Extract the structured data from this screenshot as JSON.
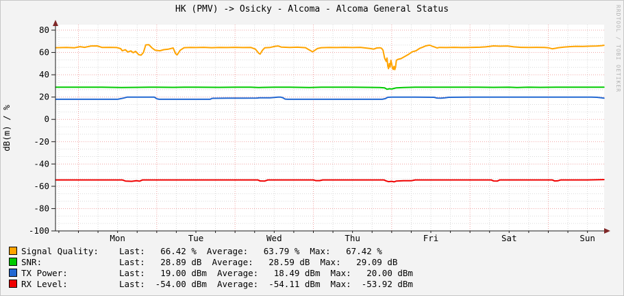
{
  "title": "HK (PMV) -> Osicky - Alcoma - Alcoma General Status",
  "watermark": "RRDTOOL / TOBI OETIKER",
  "colors": {
    "signal_quality": "#ffa400",
    "snr": "#00cb00",
    "tx_power": "#2268d2",
    "rx_level": "#f00000",
    "grid_major": "#f0a3a3",
    "grid_minor": "#d9d9d9",
    "axis": "#1a1a1a",
    "arrow": "#7f2727",
    "background": "#f3f3f3",
    "plot_background": "#ffffff"
  },
  "chart_data": {
    "type": "line",
    "title": "HK (PMV) -> Osicky - Alcoma - Alcoma General Status",
    "xlabel": "",
    "ylabel": "dB(m) / %",
    "ylim": [
      -100,
      85
    ],
    "y_major_ticks": [
      80,
      60,
      40,
      20,
      0,
      -20,
      -40,
      -60,
      -80,
      -100
    ],
    "y_minor_step": 6.6667,
    "xlim_days": [
      -0.293,
      6.713
    ],
    "x_major_gridlines_days": [
      0,
      1,
      2,
      3,
      4,
      5,
      6
    ],
    "x_minor_step_days": 0.25,
    "x_tick_labels": [
      {
        "t": 0.5,
        "label": "Mon"
      },
      {
        "t": 1.5,
        "label": "Tue"
      },
      {
        "t": 2.5,
        "label": "Wed"
      },
      {
        "t": 3.5,
        "label": "Thu"
      },
      {
        "t": 4.5,
        "label": "Fri"
      },
      {
        "t": 5.5,
        "label": "Sat"
      },
      {
        "t": 6.5,
        "label": "Sun"
      }
    ],
    "grid": true,
    "legend_position": "bottom",
    "series": [
      {
        "name": "Signal Quality",
        "unit": "%",
        "color": "#ffa400",
        "last": 66.42,
        "average": 63.79,
        "max": 67.42,
        "points": [
          [
            -0.29,
            64.3
          ],
          [
            -0.15,
            64.5
          ],
          [
            -0.05,
            64.2
          ],
          [
            0.02,
            65.2
          ],
          [
            0.08,
            64.6
          ],
          [
            0.16,
            65.8
          ],
          [
            0.24,
            65.9
          ],
          [
            0.3,
            64.5
          ],
          [
            0.4,
            64.6
          ],
          [
            0.49,
            64.4
          ],
          [
            0.54,
            63.4
          ],
          [
            0.56,
            61.5
          ],
          [
            0.6,
            62.4
          ],
          [
            0.63,
            60.4
          ],
          [
            0.67,
            61.4
          ],
          [
            0.7,
            59.8
          ],
          [
            0.73,
            61.0
          ],
          [
            0.77,
            58.0
          ],
          [
            0.8,
            57.6
          ],
          [
            0.83,
            60.0
          ],
          [
            0.86,
            66.8
          ],
          [
            0.9,
            66.9
          ],
          [
            0.94,
            64.0
          ],
          [
            0.98,
            62.0
          ],
          [
            1.04,
            61.5
          ],
          [
            1.09,
            62.5
          ],
          [
            1.15,
            63.0
          ],
          [
            1.21,
            64.0
          ],
          [
            1.24,
            59.0
          ],
          [
            1.26,
            57.8
          ],
          [
            1.3,
            62.0
          ],
          [
            1.35,
            64.3
          ],
          [
            1.43,
            64.5
          ],
          [
            1.5,
            64.4
          ],
          [
            1.6,
            64.6
          ],
          [
            1.7,
            64.3
          ],
          [
            1.8,
            64.5
          ],
          [
            1.9,
            64.4
          ],
          [
            2.0,
            64.6
          ],
          [
            2.1,
            64.4
          ],
          [
            2.2,
            64.5
          ],
          [
            2.26,
            63.0
          ],
          [
            2.3,
            59.5
          ],
          [
            2.32,
            58.5
          ],
          [
            2.35,
            62.0
          ],
          [
            2.38,
            64.2
          ],
          [
            2.45,
            64.5
          ],
          [
            2.51,
            65.5
          ],
          [
            2.55,
            65.8
          ],
          [
            2.59,
            64.8
          ],
          [
            2.7,
            64.5
          ],
          [
            2.8,
            64.7
          ],
          [
            2.9,
            64.3
          ],
          [
            2.93,
            63.0
          ],
          [
            2.97,
            61.4
          ],
          [
            2.99,
            60.5
          ],
          [
            3.02,
            62.0
          ],
          [
            3.05,
            63.5
          ],
          [
            3.1,
            64.3
          ],
          [
            3.2,
            64.5
          ],
          [
            3.3,
            64.4
          ],
          [
            3.4,
            64.6
          ],
          [
            3.5,
            64.4
          ],
          [
            3.6,
            64.6
          ],
          [
            3.73,
            63.5
          ],
          [
            3.77,
            63.0
          ],
          [
            3.81,
            64.0
          ],
          [
            3.85,
            64.2
          ],
          [
            3.87,
            63.8
          ],
          [
            3.89,
            62.0
          ],
          [
            3.91,
            55.0
          ],
          [
            3.93,
            52.0
          ],
          [
            3.94,
            55.0
          ],
          [
            3.95,
            48.0
          ],
          [
            3.96,
            45.5
          ],
          [
            3.97,
            50.0
          ],
          [
            3.98,
            47.0
          ],
          [
            3.99,
            53.0
          ],
          [
            4.0,
            50.0
          ],
          [
            4.01,
            46.0
          ],
          [
            4.02,
            44.8
          ],
          [
            4.03,
            47.5
          ],
          [
            4.04,
            44.6
          ],
          [
            4.05,
            47.0
          ],
          [
            4.06,
            53.0
          ],
          [
            4.08,
            53.8
          ],
          [
            4.12,
            54.5
          ],
          [
            4.17,
            56.5
          ],
          [
            4.22,
            58.5
          ],
          [
            4.26,
            60.5
          ],
          [
            4.31,
            61.5
          ],
          [
            4.36,
            63.8
          ],
          [
            4.4,
            64.8
          ],
          [
            4.43,
            65.8
          ],
          [
            4.47,
            66.4
          ],
          [
            4.49,
            66.5
          ],
          [
            4.52,
            65.5
          ],
          [
            4.55,
            64.8
          ],
          [
            4.58,
            64.0
          ],
          [
            4.61,
            64.5
          ],
          [
            4.7,
            64.4
          ],
          [
            4.8,
            64.6
          ],
          [
            4.9,
            64.4
          ],
          [
            5.0,
            64.5
          ],
          [
            5.13,
            64.7
          ],
          [
            5.2,
            65.0
          ],
          [
            5.3,
            65.9
          ],
          [
            5.38,
            65.6
          ],
          [
            5.48,
            65.8
          ],
          [
            5.56,
            65.0
          ],
          [
            5.65,
            64.6
          ],
          [
            5.75,
            64.5
          ],
          [
            5.85,
            64.6
          ],
          [
            5.95,
            64.5
          ],
          [
            6.0,
            64.2
          ],
          [
            6.05,
            63.3
          ],
          [
            6.09,
            63.7
          ],
          [
            6.13,
            64.3
          ],
          [
            6.2,
            64.8
          ],
          [
            6.27,
            65.2
          ],
          [
            6.35,
            65.5
          ],
          [
            6.44,
            65.4
          ],
          [
            6.53,
            65.6
          ],
          [
            6.62,
            65.8
          ],
          [
            6.68,
            66.1
          ],
          [
            6.71,
            66.4
          ]
        ]
      },
      {
        "name": "SNR",
        "unit": "dB",
        "color": "#00cb00",
        "last": 28.89,
        "average": 28.59,
        "max": 29.09,
        "points": [
          [
            -0.29,
            28.9
          ],
          [
            0.3,
            28.9
          ],
          [
            0.55,
            28.6
          ],
          [
            0.75,
            28.7
          ],
          [
            0.9,
            28.8
          ],
          [
            1.0,
            28.9
          ],
          [
            1.2,
            28.7
          ],
          [
            1.35,
            28.9
          ],
          [
            1.5,
            28.8
          ],
          [
            1.8,
            28.7
          ],
          [
            2.0,
            28.9
          ],
          [
            2.2,
            28.8
          ],
          [
            2.3,
            28.6
          ],
          [
            2.5,
            28.9
          ],
          [
            2.7,
            28.8
          ],
          [
            2.95,
            28.5
          ],
          [
            3.1,
            28.8
          ],
          [
            3.3,
            28.9
          ],
          [
            3.5,
            28.8
          ],
          [
            3.7,
            28.7
          ],
          [
            3.85,
            28.6
          ],
          [
            3.91,
            28.2
          ],
          [
            3.94,
            27.0
          ],
          [
            3.97,
            27.5
          ],
          [
            4.0,
            27.2
          ],
          [
            4.03,
            27.8
          ],
          [
            4.06,
            28.3
          ],
          [
            4.15,
            28.6
          ],
          [
            4.3,
            28.9
          ],
          [
            4.5,
            28.8
          ],
          [
            4.7,
            28.9
          ],
          [
            4.9,
            28.8
          ],
          [
            5.1,
            28.9
          ],
          [
            5.3,
            28.7
          ],
          [
            5.5,
            28.8
          ],
          [
            5.6,
            28.6
          ],
          [
            5.75,
            28.8
          ],
          [
            5.9,
            28.7
          ],
          [
            6.1,
            28.9
          ],
          [
            6.3,
            28.8
          ],
          [
            6.5,
            28.9
          ],
          [
            6.71,
            28.9
          ]
        ]
      },
      {
        "name": "TX Power",
        "unit": "dBm",
        "color": "#2268d2",
        "last": 19.0,
        "average": 18.49,
        "max": 20.0,
        "points": [
          [
            -0.29,
            18.0
          ],
          [
            0.5,
            18.0
          ],
          [
            0.57,
            19.0
          ],
          [
            0.62,
            19.9
          ],
          [
            0.7,
            20.0
          ],
          [
            0.88,
            20.0
          ],
          [
            0.97,
            19.9
          ],
          [
            1.0,
            18.5
          ],
          [
            1.03,
            18.0
          ],
          [
            1.4,
            18.0
          ],
          [
            1.68,
            18.0
          ],
          [
            1.71,
            18.9
          ],
          [
            1.9,
            19.0
          ],
          [
            2.1,
            19.0
          ],
          [
            2.28,
            19.1
          ],
          [
            2.31,
            19.3
          ],
          [
            2.45,
            19.3
          ],
          [
            2.55,
            19.9
          ],
          [
            2.58,
            20.0
          ],
          [
            2.61,
            19.4
          ],
          [
            2.64,
            18.2
          ],
          [
            2.67,
            18.0
          ],
          [
            3.0,
            18.0
          ],
          [
            3.5,
            18.0
          ],
          [
            3.88,
            18.0
          ],
          [
            3.92,
            18.6
          ],
          [
            3.95,
            19.8
          ],
          [
            4.0,
            19.9
          ],
          [
            4.3,
            19.9
          ],
          [
            4.54,
            19.8
          ],
          [
            4.58,
            19.1
          ],
          [
            4.63,
            19.0
          ],
          [
            4.68,
            19.3
          ],
          [
            4.73,
            19.8
          ],
          [
            5.0,
            19.9
          ],
          [
            5.5,
            19.9
          ],
          [
            6.0,
            19.9
          ],
          [
            6.3,
            19.9
          ],
          [
            6.55,
            19.9
          ],
          [
            6.62,
            19.8
          ],
          [
            6.68,
            19.3
          ],
          [
            6.71,
            19.0
          ]
        ]
      },
      {
        "name": "RX Level",
        "unit": "dBm",
        "color": "#f00000",
        "last": -54.0,
        "average": -54.11,
        "max": -53.92,
        "points": [
          [
            -0.29,
            -54.3
          ],
          [
            0.4,
            -54.3
          ],
          [
            0.56,
            -54.3
          ],
          [
            0.6,
            -55.3
          ],
          [
            0.68,
            -55.5
          ],
          [
            0.74,
            -55.0
          ],
          [
            0.78,
            -55.4
          ],
          [
            0.82,
            -54.3
          ],
          [
            1.2,
            -54.3
          ],
          [
            1.5,
            -54.3
          ],
          [
            2.0,
            -54.3
          ],
          [
            2.29,
            -54.3
          ],
          [
            2.32,
            -55.2
          ],
          [
            2.38,
            -55.3
          ],
          [
            2.42,
            -54.3
          ],
          [
            3.0,
            -54.3
          ],
          [
            3.03,
            -54.9
          ],
          [
            3.08,
            -54.9
          ],
          [
            3.12,
            -54.3
          ],
          [
            3.5,
            -54.3
          ],
          [
            3.9,
            -54.3
          ],
          [
            3.93,
            -55.2
          ],
          [
            3.96,
            -55.8
          ],
          [
            4.0,
            -55.5
          ],
          [
            4.03,
            -56.0
          ],
          [
            4.06,
            -55.3
          ],
          [
            4.15,
            -55.0
          ],
          [
            4.25,
            -55.0
          ],
          [
            4.3,
            -54.3
          ],
          [
            5.0,
            -54.3
          ],
          [
            5.27,
            -54.3
          ],
          [
            5.3,
            -55.2
          ],
          [
            5.35,
            -55.3
          ],
          [
            5.38,
            -54.3
          ],
          [
            5.8,
            -54.3
          ],
          [
            6.05,
            -54.3
          ],
          [
            6.08,
            -55.2
          ],
          [
            6.12,
            -55.1
          ],
          [
            6.16,
            -54.3
          ],
          [
            6.5,
            -54.3
          ],
          [
            6.71,
            -54.0
          ]
        ]
      }
    ]
  },
  "legend": {
    "rows": [
      {
        "label": "Signal Quality:",
        "swatch_color": "#ffa400",
        "last_label": "Last:",
        "last": "66.42 %",
        "average_label": "Average:",
        "average": "63.79 %",
        "max_label": "Max:",
        "max": "67.42 %",
        "text": "Signal Quality:    Last:   66.42 %  Average:   63.79 %  Max:   67.42 %"
      },
      {
        "label": "SNR:",
        "swatch_color": "#00cb00",
        "last_label": "Last:",
        "last": "28.89 dB",
        "average_label": "Average:",
        "average": "28.59 dB",
        "max_label": "Max:",
        "max": "29.09 dB",
        "text": "SNR:               Last:   28.89 dB  Average:   28.59 dB  Max:   29.09 dB"
      },
      {
        "label": "TX Power:",
        "swatch_color": "#2268d2",
        "last_label": "Last:",
        "last": "19.00 dBm",
        "average_label": "Average:",
        "average": "18.49 dBm",
        "max_label": "Max:",
        "max": "20.00 dBm",
        "text": "TX Power:          Last:   19.00 dBm  Average:   18.49 dBm  Max:   20.00 dBm"
      },
      {
        "label": "RX Level:",
        "swatch_color": "#f00000",
        "last_label": "Last:",
        "last": "-54.00 dBm",
        "average_label": "Average:",
        "average": "-54.11 dBm",
        "max_label": "Max:",
        "max": "-53.92 dBm",
        "text": "RX Level:          Last:  -54.00 dBm  Average:  -54.11 dBm  Max:  -53.92 dBm"
      }
    ]
  }
}
